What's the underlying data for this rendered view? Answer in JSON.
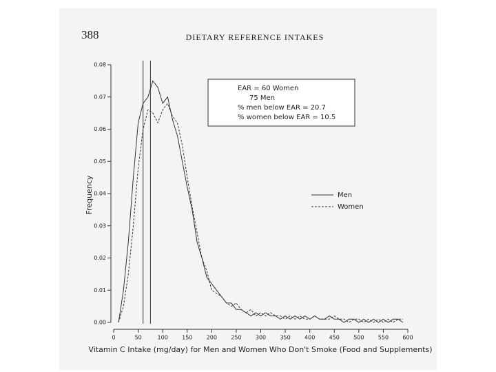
{
  "page": {
    "number": "388",
    "running_head": "DIETARY REFERENCE INTAKES"
  },
  "chart_data": {
    "type": "line",
    "x_label": "Vitamin C Intake (mg/day) for Men and Women Who Don't Smoke (Food and Supplements)",
    "y_label": "Frequency",
    "annotations": [
      "EAR = 60 Women",
      "75 Men",
      "% men below EAR = 20.7",
      "% women below EAR = 10.5"
    ],
    "reference_lines": [
      60,
      75
    ],
    "legend": "right",
    "x": [
      10,
      20,
      30,
      40,
      50,
      60,
      70,
      80,
      90,
      100,
      110,
      120,
      130,
      140,
      150,
      160,
      170,
      180,
      190,
      200,
      210,
      220,
      230,
      240,
      250,
      260,
      270,
      280,
      290,
      300,
      310,
      320,
      330,
      340,
      350,
      360,
      370,
      380,
      390,
      400,
      410,
      420,
      430,
      440,
      450,
      460,
      470,
      480,
      490,
      500,
      510,
      520,
      530,
      540,
      550,
      560,
      570,
      580,
      590
    ],
    "series": [
      {
        "name": "Men",
        "color": "#333333",
        "line_style": "solid",
        "values": [
          0.0,
          0.01,
          0.025,
          0.045,
          0.062,
          0.068,
          0.07,
          0.075,
          0.073,
          0.068,
          0.07,
          0.063,
          0.058,
          0.05,
          0.042,
          0.035,
          0.025,
          0.02,
          0.014,
          0.012,
          0.01,
          0.008,
          0.006,
          0.006,
          0.004,
          0.004,
          0.003,
          0.002,
          0.003,
          0.002,
          0.003,
          0.002,
          0.002,
          0.001,
          0.002,
          0.001,
          0.002,
          0.001,
          0.002,
          0.001,
          0.002,
          0.001,
          0.001,
          0.002,
          0.001,
          0.001,
          0.0,
          0.001,
          0.001,
          0.0,
          0.001,
          0.0,
          0.001,
          0.0,
          0.001,
          0.0,
          0.001,
          0.001,
          0.0
        ]
      },
      {
        "name": "Women",
        "color": "#333333",
        "line_style": "dashed",
        "values": [
          0.0,
          0.005,
          0.015,
          0.03,
          0.048,
          0.06,
          0.066,
          0.065,
          0.062,
          0.066,
          0.068,
          0.064,
          0.062,
          0.055,
          0.045,
          0.036,
          0.028,
          0.02,
          0.016,
          0.01,
          0.009,
          0.008,
          0.006,
          0.005,
          0.006,
          0.004,
          0.003,
          0.004,
          0.002,
          0.003,
          0.002,
          0.003,
          0.002,
          0.002,
          0.001,
          0.002,
          0.001,
          0.002,
          0.001,
          0.001,
          0.002,
          0.001,
          0.001,
          0.001,
          0.002,
          0.001,
          0.001,
          0.0,
          0.001,
          0.001,
          0.0,
          0.001,
          0.0,
          0.001,
          0.0,
          0.001,
          0.0,
          0.001,
          0.001
        ]
      }
    ],
    "xlim": [
      0,
      600
    ],
    "xticks": [
      0,
      50,
      100,
      150,
      200,
      250,
      300,
      350,
      400,
      450,
      500,
      550,
      600
    ],
    "ylim": [
      0,
      0.08
    ],
    "yticks": [
      {
        "value": 0,
        "label": "0.00"
      },
      0.01,
      0.02,
      0.03,
      0.04,
      0.05,
      0.06,
      0.07,
      0.08
    ]
  }
}
